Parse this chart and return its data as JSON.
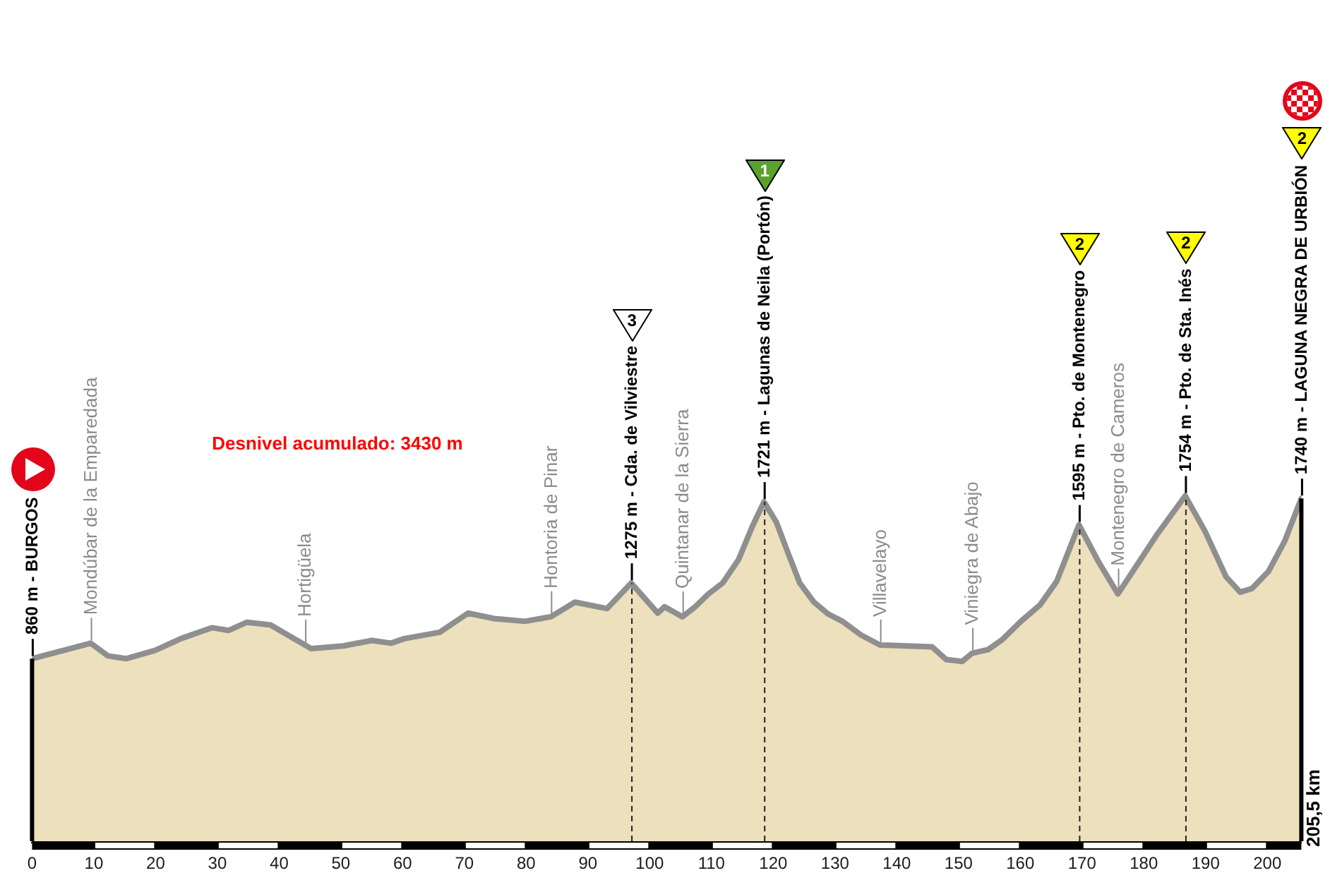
{
  "chart_data": {
    "type": "area",
    "x": [
      0,
      9.5,
      12.3,
      15.2,
      19.9,
      24.1,
      29.1,
      31.8,
      34.8,
      38.6,
      44.2,
      45.2,
      50.4,
      55,
      58.1,
      60.3,
      66,
      70.6,
      74.8,
      79.8,
      84,
      87.9,
      93.1,
      97,
      101.3,
      102.4,
      105.3,
      107.2,
      109.5,
      111.8,
      114.4,
      116.6,
      118.5,
      120.5,
      122.4,
      124.3,
      126.6,
      128.9,
      131.2,
      134.2,
      137.3,
      145.7,
      148,
      150.6,
      152.2,
      154.8,
      157.1,
      160.1,
      163.2,
      165.9,
      169.5,
      172.7,
      175.8,
      179.2,
      182.2,
      186.7,
      189.9,
      193.3,
      195.6,
      197.5,
      200.2,
      202.8,
      205.5
    ],
    "values": [
      860,
      945,
      875,
      860,
      905,
      970,
      1030,
      1015,
      1060,
      1045,
      935,
      915,
      930,
      960,
      945,
      970,
      1005,
      1110,
      1080,
      1065,
      1090,
      1170,
      1135,
      1275,
      1110,
      1145,
      1090,
      1140,
      1215,
      1275,
      1405,
      1585,
      1721,
      1610,
      1440,
      1275,
      1170,
      1105,
      1065,
      990,
      935,
      925,
      855,
      845,
      890,
      910,
      965,
      1065,
      1155,
      1285,
      1595,
      1390,
      1215,
      1390,
      1545,
      1754,
      1560,
      1310,
      1225,
      1245,
      1340,
      1505,
      1740
    ],
    "value_labels": [
      "860 m - BURGOS",
      null,
      null,
      null,
      null,
      null,
      null,
      null,
      null,
      null,
      null,
      null,
      null,
      null,
      null,
      null,
      null,
      null,
      null,
      null,
      null,
      null,
      null,
      "1275 m - Cda. de Vilviestre",
      null,
      null,
      null,
      null,
      null,
      null,
      null,
      null,
      "1721 m - Lagunas de Neila (Portón)",
      null,
      null,
      null,
      null,
      null,
      null,
      null,
      null,
      null,
      null,
      null,
      null,
      null,
      null,
      null,
      null,
      null,
      "1595 m - Pto. de Montenegro",
      null,
      null,
      null,
      null,
      "1754 m - Pto. de Sta. Inés",
      null,
      null,
      null,
      null,
      null,
      null,
      "1740 m - LAGUNA NEGRA DE URBIÓN"
    ],
    "color": "#ede0bd",
    "xlim": [
      0,
      205.5
    ],
    "xticks": [
      0,
      10,
      20,
      30,
      40,
      50,
      60,
      70,
      80,
      90,
      100,
      110,
      120,
      130,
      140,
      150,
      160,
      170,
      180,
      190,
      200
    ],
    "tick_labels": "x",
    "ref_lines": [
      {
        "axis": "x",
        "value": 0,
        "color": "#000000",
        "line_style": "solid"
      },
      {
        "axis": "x",
        "value": 97,
        "color": "#222222",
        "line_style": "dashed"
      },
      {
        "axis": "x",
        "value": 118.5,
        "color": "#222222",
        "line_style": "dashed"
      },
      {
        "axis": "x",
        "value": 169.5,
        "color": "#222222",
        "line_style": "dashed"
      },
      {
        "axis": "x",
        "value": 186.7,
        "color": "#222222",
        "line_style": "dashed"
      },
      {
        "axis": "x",
        "value": 205.5,
        "color": "#000000",
        "line_style": "solid"
      }
    ],
    "annotations": [
      "Desnivel acumulado: 3430 m",
      "205,5 km",
      {
        "text": "Mondúbar de la Emparedada",
        "x": 9.5,
        "y": 945
      },
      {
        "text": "Hortigüela",
        "x": 44.2,
        "y": 935
      },
      {
        "text": "Hontoria de Pinar",
        "x": 84,
        "y": 1090
      },
      {
        "text": "Quintanar de la Sierra",
        "x": 105.3,
        "y": 1090
      },
      {
        "text": "Villavelayo",
        "x": 137.3,
        "y": 935
      },
      {
        "text": "Viniegra de Abajo",
        "x": 152.2,
        "y": 890
      },
      {
        "text": "Montenegro de Cameros",
        "x": 175.8,
        "y": 1215
      },
      "3",
      "1",
      "2",
      "2",
      "2"
    ]
  }
}
